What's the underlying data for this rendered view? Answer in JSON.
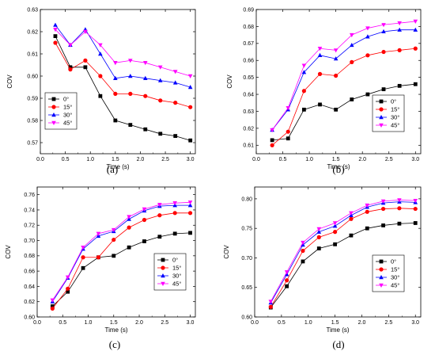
{
  "colors": {
    "0": "#000000",
    "15": "#ff0000",
    "30": "#0000ff",
    "45": "#ff00ff"
  },
  "chart_data": [
    {
      "type": "line",
      "caption": "(a)",
      "xlabel": "Time (s)",
      "ylabel": "COV",
      "xlim": [
        0,
        3.1
      ],
      "ylim": [
        0.565,
        0.63
      ],
      "xticks": [
        "0.0",
        "0.5",
        "1.0",
        "1.5",
        "2.0",
        "2.5",
        "3.0"
      ],
      "yticks": [
        "0.57",
        "0.58",
        "0.59",
        "0.60",
        "0.61",
        "0.62",
        "0.63"
      ],
      "legend_position": "bottom-left",
      "x": [
        0.3,
        0.6,
        0.9,
        1.2,
        1.5,
        1.8,
        2.1,
        2.4,
        2.7,
        3.0
      ],
      "series": [
        {
          "name": "0°",
          "marker": "square",
          "values": [
            0.618,
            0.604,
            0.604,
            0.591,
            0.58,
            0.578,
            0.576,
            0.574,
            0.573,
            0.571
          ]
        },
        {
          "name": "15°",
          "marker": "circle",
          "values": [
            0.615,
            0.603,
            0.607,
            0.6,
            0.592,
            0.592,
            0.591,
            0.589,
            0.588,
            0.586
          ]
        },
        {
          "name": "30°",
          "marker": "triangle-up",
          "values": [
            0.623,
            0.614,
            0.621,
            0.61,
            0.599,
            0.6,
            0.599,
            0.598,
            0.597,
            0.595
          ]
        },
        {
          "name": "45°",
          "marker": "triangle-down",
          "values": [
            0.621,
            0.614,
            0.62,
            0.614,
            0.606,
            0.607,
            0.606,
            0.604,
            0.602,
            0.6
          ]
        }
      ]
    },
    {
      "type": "line",
      "caption": "(b)",
      "xlabel": "Time (s)",
      "ylabel": "COV",
      "xlim": [
        0,
        3.1
      ],
      "ylim": [
        0.605,
        0.69
      ],
      "xticks": [
        "0.0",
        "0.5",
        "1.0",
        "1.5",
        "2.0",
        "2.5",
        "3.0"
      ],
      "yticks": [
        "0.61",
        "0.62",
        "0.63",
        "0.64",
        "0.65",
        "0.66",
        "0.67",
        "0.68",
        "0.69"
      ],
      "legend_position": "bottom-right",
      "x": [
        0.3,
        0.6,
        0.9,
        1.2,
        1.5,
        1.8,
        2.1,
        2.4,
        2.7,
        3.0
      ],
      "series": [
        {
          "name": "0°",
          "marker": "square",
          "values": [
            0.613,
            0.614,
            0.631,
            0.634,
            0.631,
            0.637,
            0.64,
            0.643,
            0.645,
            0.646
          ]
        },
        {
          "name": "15°",
          "marker": "circle",
          "values": [
            0.61,
            0.618,
            0.642,
            0.652,
            0.651,
            0.659,
            0.663,
            0.665,
            0.666,
            0.667
          ]
        },
        {
          "name": "30°",
          "marker": "triangle-up",
          "values": [
            0.619,
            0.631,
            0.653,
            0.663,
            0.661,
            0.669,
            0.674,
            0.677,
            0.678,
            0.678
          ]
        },
        {
          "name": "45°",
          "marker": "triangle-down",
          "values": [
            0.619,
            0.632,
            0.657,
            0.667,
            0.666,
            0.675,
            0.679,
            0.681,
            0.682,
            0.683
          ]
        }
      ]
    },
    {
      "type": "line",
      "caption": "(c)",
      "xlabel": "Time (s)",
      "ylabel": "COV",
      "xlim": [
        0,
        3.1
      ],
      "ylim": [
        0.6,
        0.77
      ],
      "xticks": [
        "0.0",
        "0.5",
        "1.0",
        "1.5",
        "2.0",
        "2.5",
        "3.0"
      ],
      "yticks": [
        "0.60",
        "0.62",
        "0.64",
        "0.66",
        "0.68",
        "0.70",
        "0.72",
        "0.74",
        "0.76"
      ],
      "legend_position": "bottom-right",
      "x": [
        0.3,
        0.6,
        0.9,
        1.2,
        1.5,
        1.8,
        2.1,
        2.4,
        2.7,
        3.0
      ],
      "series": [
        {
          "name": "0°",
          "marker": "square",
          "values": [
            0.614,
            0.633,
            0.664,
            0.678,
            0.68,
            0.691,
            0.699,
            0.705,
            0.709,
            0.71
          ]
        },
        {
          "name": "15°",
          "marker": "circle",
          "values": [
            0.611,
            0.637,
            0.678,
            0.678,
            0.701,
            0.717,
            0.727,
            0.733,
            0.736,
            0.736
          ]
        },
        {
          "name": "30°",
          "marker": "triangle-up",
          "values": [
            0.62,
            0.651,
            0.689,
            0.706,
            0.712,
            0.728,
            0.739,
            0.745,
            0.746,
            0.746
          ]
        },
        {
          "name": "45°",
          "marker": "triangle-down",
          "values": [
            0.622,
            0.652,
            0.691,
            0.709,
            0.714,
            0.731,
            0.741,
            0.747,
            0.749,
            0.75
          ]
        }
      ]
    },
    {
      "type": "line",
      "caption": "(d)",
      "xlabel": "Time (s)",
      "ylabel": "COV",
      "xlim": [
        0,
        3.1
      ],
      "ylim": [
        0.6,
        0.82
      ],
      "xticks": [
        "0.0",
        "0.5",
        "1.0",
        "1.5",
        "2.0",
        "2.5",
        "3.0"
      ],
      "yticks": [
        "0.60",
        "0.65",
        "0.70",
        "0.75",
        "0.80"
      ],
      "legend_position": "bottom-right",
      "x": [
        0.3,
        0.6,
        0.9,
        1.2,
        1.5,
        1.8,
        2.1,
        2.4,
        2.7,
        3.0
      ],
      "series": [
        {
          "name": "0°",
          "marker": "square",
          "values": [
            0.616,
            0.652,
            0.694,
            0.716,
            0.723,
            0.738,
            0.75,
            0.755,
            0.758,
            0.759
          ]
        },
        {
          "name": "15°",
          "marker": "circle",
          "values": [
            0.617,
            0.662,
            0.712,
            0.735,
            0.744,
            0.766,
            0.778,
            0.783,
            0.784,
            0.783
          ]
        },
        {
          "name": "30°",
          "marker": "triangle-up",
          "values": [
            0.624,
            0.672,
            0.722,
            0.744,
            0.754,
            0.772,
            0.786,
            0.793,
            0.795,
            0.794
          ]
        },
        {
          "name": "45°",
          "marker": "triangle-down",
          "values": [
            0.626,
            0.676,
            0.726,
            0.749,
            0.759,
            0.776,
            0.789,
            0.796,
            0.798,
            0.797
          ]
        }
      ]
    }
  ]
}
